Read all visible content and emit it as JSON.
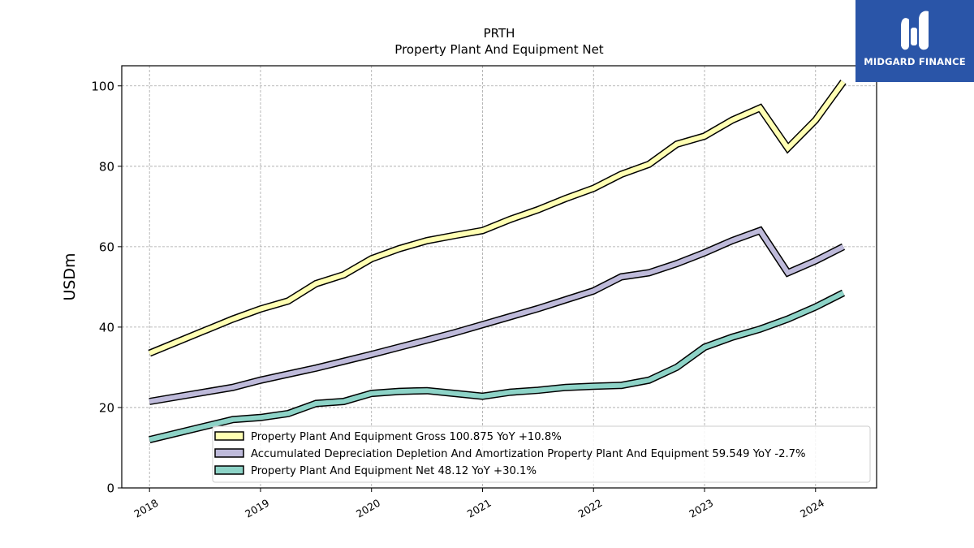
{
  "chart_data": {
    "type": "line",
    "title": "PRTH",
    "subtitle": "Property Plant And Equipment Net",
    "ylabel": "USDm",
    "xlabel": "",
    "ylim": [
      0,
      105
    ],
    "xlim": [
      2017.75,
      2024.55
    ],
    "yticks": [
      0,
      20,
      40,
      60,
      80,
      100
    ],
    "xticks": [
      2018,
      2019,
      2020,
      2021,
      2022,
      2023,
      2024
    ],
    "grid": true,
    "legend_position": "lower-right",
    "x": [
      2018.0,
      2018.75,
      2019.0,
      2019.25,
      2019.5,
      2019.75,
      2020.0,
      2020.25,
      2020.5,
      2020.75,
      2021.0,
      2021.25,
      2021.5,
      2021.75,
      2022.0,
      2022.25,
      2022.5,
      2022.75,
      2023.0,
      2023.25,
      2023.5,
      2023.75,
      2024.0,
      2024.25
    ],
    "series": [
      {
        "name": "Property Plant And Equipment Gross",
        "legend_label": "Property Plant And Equipment Gross  100.875 YoY +10.8%",
        "color": "#ffffb3",
        "values": [
          33.5,
          42.0,
          44.5,
          46.5,
          50.8,
          53.0,
          57.0,
          59.5,
          61.5,
          62.8,
          64.0,
          66.8,
          69.2,
          72.0,
          74.5,
          78.0,
          80.5,
          85.5,
          87.5,
          91.5,
          94.5,
          84.5,
          91.5,
          101.0
        ]
      },
      {
        "name": "Accumulated Depreciation Depletion And Amortization Property Plant And Equipment",
        "legend_label": "Accumulated Depreciation Depletion And Amortization Property Plant And Equipment  59.549 YoY -2.7%",
        "color": "#bebada",
        "values": [
          21.5,
          25.0,
          26.8,
          28.3,
          29.8,
          31.5,
          33.2,
          35.0,
          36.8,
          38.6,
          40.6,
          42.6,
          44.6,
          46.8,
          49.0,
          52.5,
          53.5,
          55.8,
          58.5,
          61.5,
          64.0,
          53.5,
          56.5,
          60.0
        ]
      },
      {
        "name": "Property Plant And Equipment Net",
        "legend_label": "Property Plant And Equipment Net  48.12 YoY +30.1%",
        "color": "#8dd3c7",
        "values": [
          12.0,
          17.0,
          17.5,
          18.5,
          21.0,
          21.5,
          23.5,
          24.0,
          24.2,
          23.5,
          22.8,
          23.8,
          24.3,
          25.0,
          25.3,
          25.5,
          26.8,
          30.0,
          35.0,
          37.5,
          39.5,
          42.0,
          45.0,
          48.5
        ]
      }
    ]
  },
  "logo": {
    "text": "MIDGARD FINANCE",
    "color": "#2a55a8"
  }
}
